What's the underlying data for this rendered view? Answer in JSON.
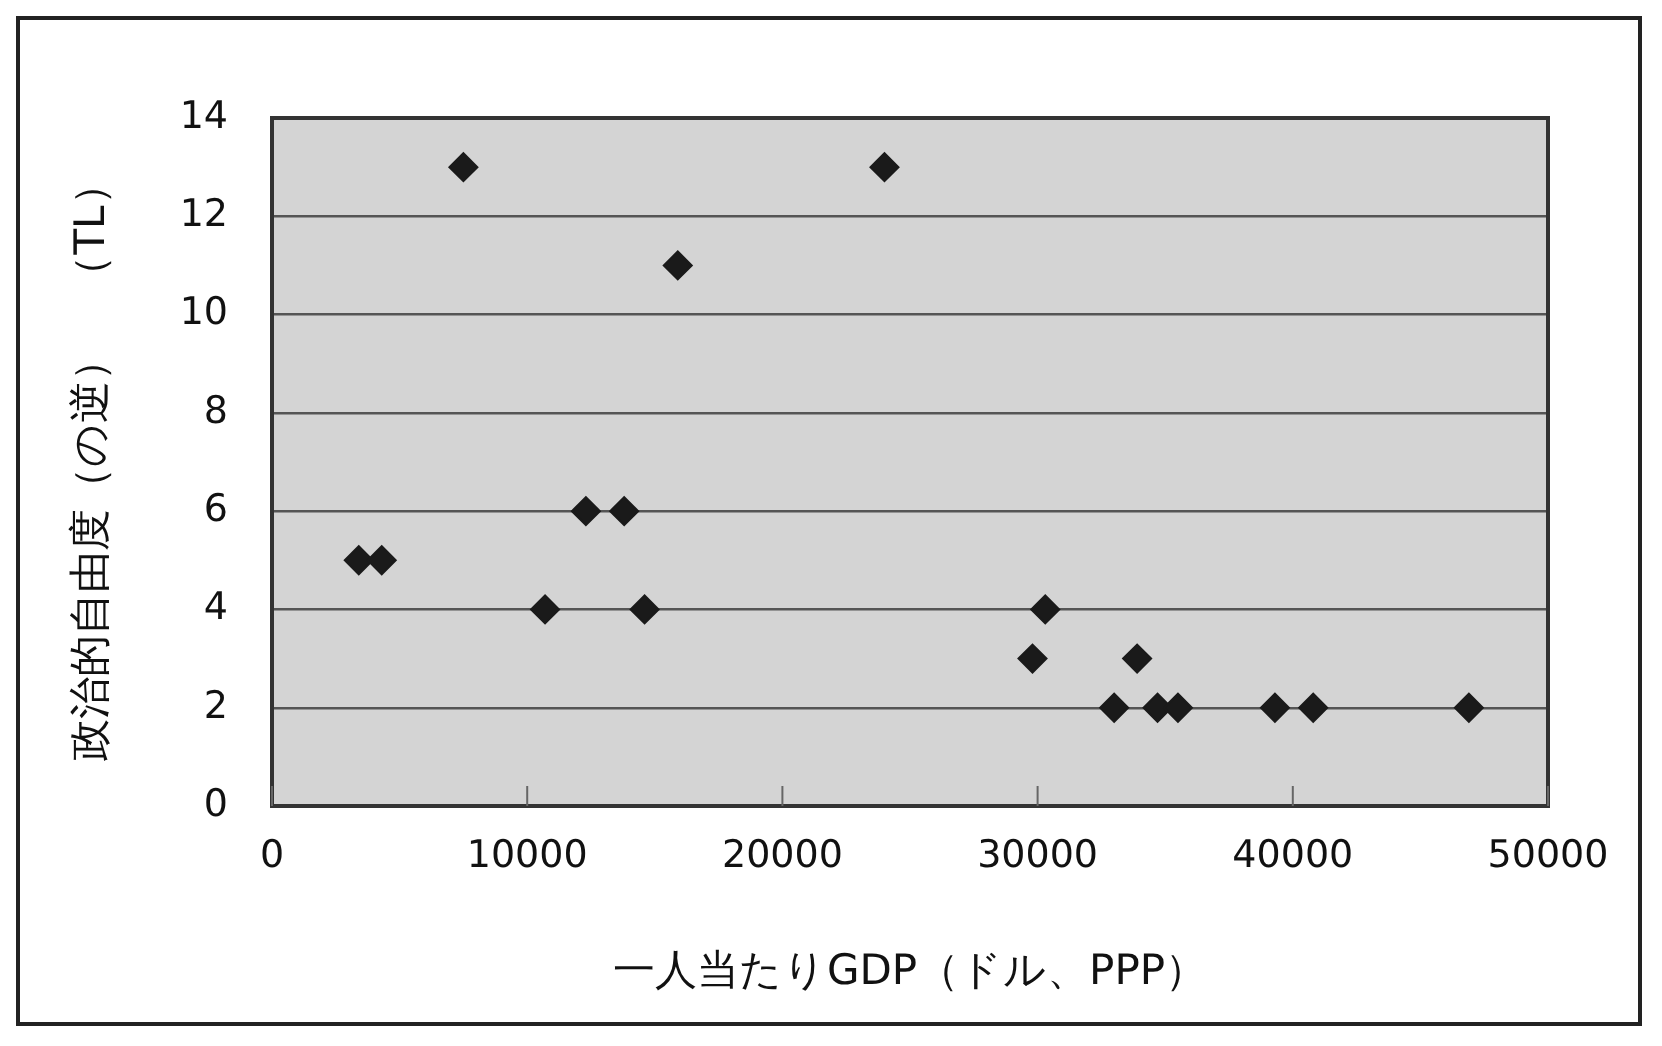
{
  "chart_data": {
    "type": "scatter",
    "xlabel": "一人当たりGDP（ドル、PPP）",
    "ylabel": "政治的自由度（の逆）　（TL）",
    "x": [
      3400,
      4300,
      7500,
      10700,
      12300,
      13800,
      14600,
      15900,
      24000,
      29800,
      30300,
      33000,
      33900,
      34700,
      35500,
      39300,
      40800,
      46900
    ],
    "series": [
      {
        "color": "#1a1a1a",
        "values": [
          5,
          5,
          13,
          4,
          6,
          6,
          4,
          11,
          13,
          3,
          4,
          2,
          3,
          2,
          2,
          2,
          2,
          2
        ]
      }
    ],
    "xlim": [
      0,
      50000
    ],
    "xticks": [
      0,
      10000,
      20000,
      30000,
      40000,
      50000
    ],
    "ylim": [
      0,
      14
    ],
    "yticks": [
      0,
      2,
      4,
      6,
      8,
      10,
      12,
      14
    ],
    "grid": "y",
    "legend": false,
    "marker": "diamond"
  }
}
